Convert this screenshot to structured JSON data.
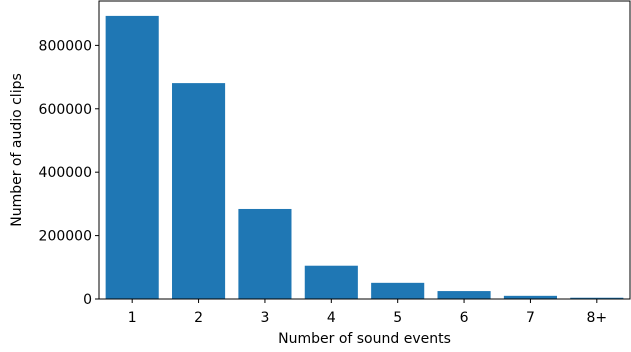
{
  "chart_data": {
    "type": "bar",
    "title": "",
    "xlabel": "Number of sound events",
    "ylabel": "Number of audio clips",
    "categories": [
      "1",
      "2",
      "3",
      "4",
      "5",
      "6",
      "7",
      "8+"
    ],
    "values": [
      893000,
      681000,
      284000,
      105000,
      51000,
      25000,
      10000,
      4000
    ],
    "ylim": [
      0,
      940000
    ],
    "yticks": [
      0,
      200000,
      400000,
      600000,
      800000
    ],
    "ytick_labels": [
      "0",
      "200000",
      "400000",
      "600000",
      "800000"
    ],
    "bar_color": "#1f77b4",
    "grid": false,
    "legend": false
  }
}
